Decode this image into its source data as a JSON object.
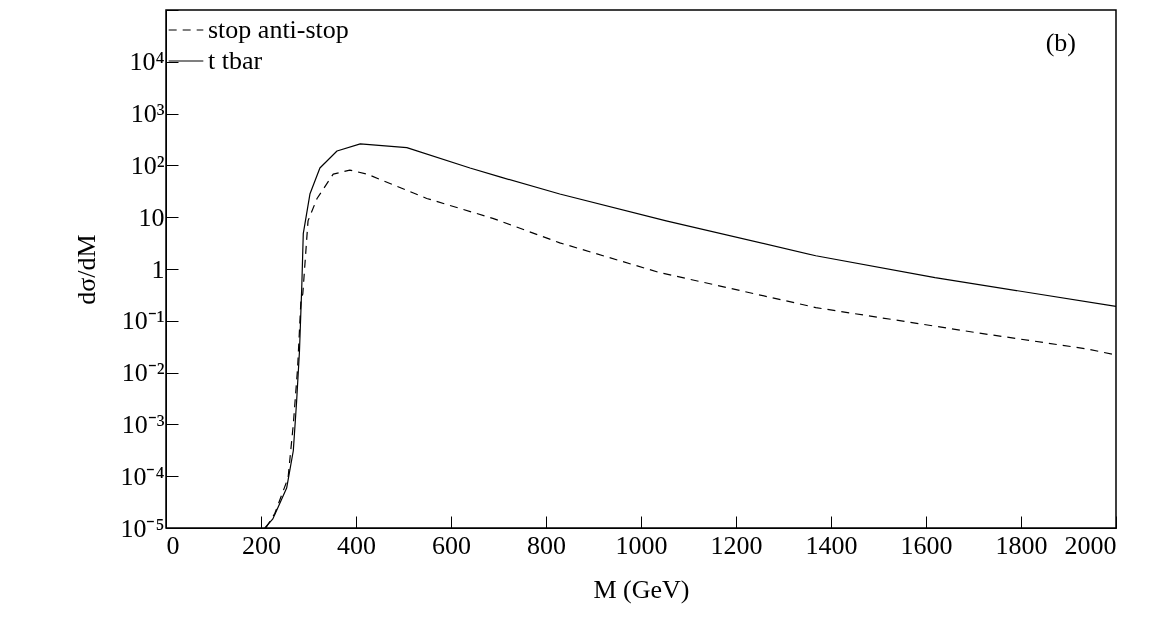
{
  "chart_data": {
    "type": "line",
    "xlabel": "M (GeV)",
    "ylabel": "dσ/dM",
    "annotations": [
      "(b)"
    ],
    "log": true,
    "grid": false,
    "legend": "top left",
    "marker": "none",
    "xlim": [
      0,
      2000
    ],
    "xticks": [
      0,
      200,
      400,
      600,
      800,
      1000,
      1200,
      1400,
      1600,
      1800,
      2000
    ],
    "ylim": [
      1e-05,
      100000
    ],
    "yticks": [
      {
        "value": 1e-05,
        "label": "10⁻⁵"
      },
      {
        "value": 0.0001,
        "label": "10⁻⁴"
      },
      {
        "value": 0.001,
        "label": "10⁻³"
      },
      {
        "value": 0.01,
        "label": "10⁻²"
      },
      {
        "value": 0.1,
        "label": "10⁻¹"
      },
      1,
      10,
      {
        "value": 100,
        "label": "10²"
      },
      {
        "value": 1000,
        "label": "10³"
      },
      {
        "value": 10000,
        "label": "10⁴"
      },
      {
        "value": 100000,
        "label": null
      }
    ],
    "series": [
      {
        "name": "stop anti-stop",
        "color": "#000000",
        "line_style": "dashed",
        "x": [
          210,
          229,
          257,
          268,
          277,
          284,
          288,
          299,
          318,
          352,
          387,
          423,
          549,
          688,
          829,
          1036,
          1368,
          1701,
          1935,
          2000
        ],
        "values": [
          1e-05,
          1.9e-05,
          9.3e-05,
          0.001,
          0.012,
          0.24,
          0.33,
          8.5,
          23,
          68,
          81,
          68,
          23,
          9.5,
          3.2,
          0.87,
          0.18,
          0.06,
          0.029,
          0.022
        ]
      },
      {
        "name": "t tbar",
        "color": "#000000",
        "line_style": "solid",
        "x": [
          208,
          225,
          254,
          268,
          275,
          281,
          286,
          289,
          303,
          324,
          360,
          409,
          507,
          640,
          703,
          829,
          1053,
          1368,
          1619,
          2000
        ],
        "values": [
          1e-05,
          1.5e-05,
          5.9e-05,
          0.00031,
          0.0028,
          0.026,
          0.51,
          4.8,
          28,
          89,
          190,
          260,
          220,
          89,
          60,
          28,
          8.5,
          1.8,
          0.68,
          0.19
        ]
      }
    ]
  }
}
